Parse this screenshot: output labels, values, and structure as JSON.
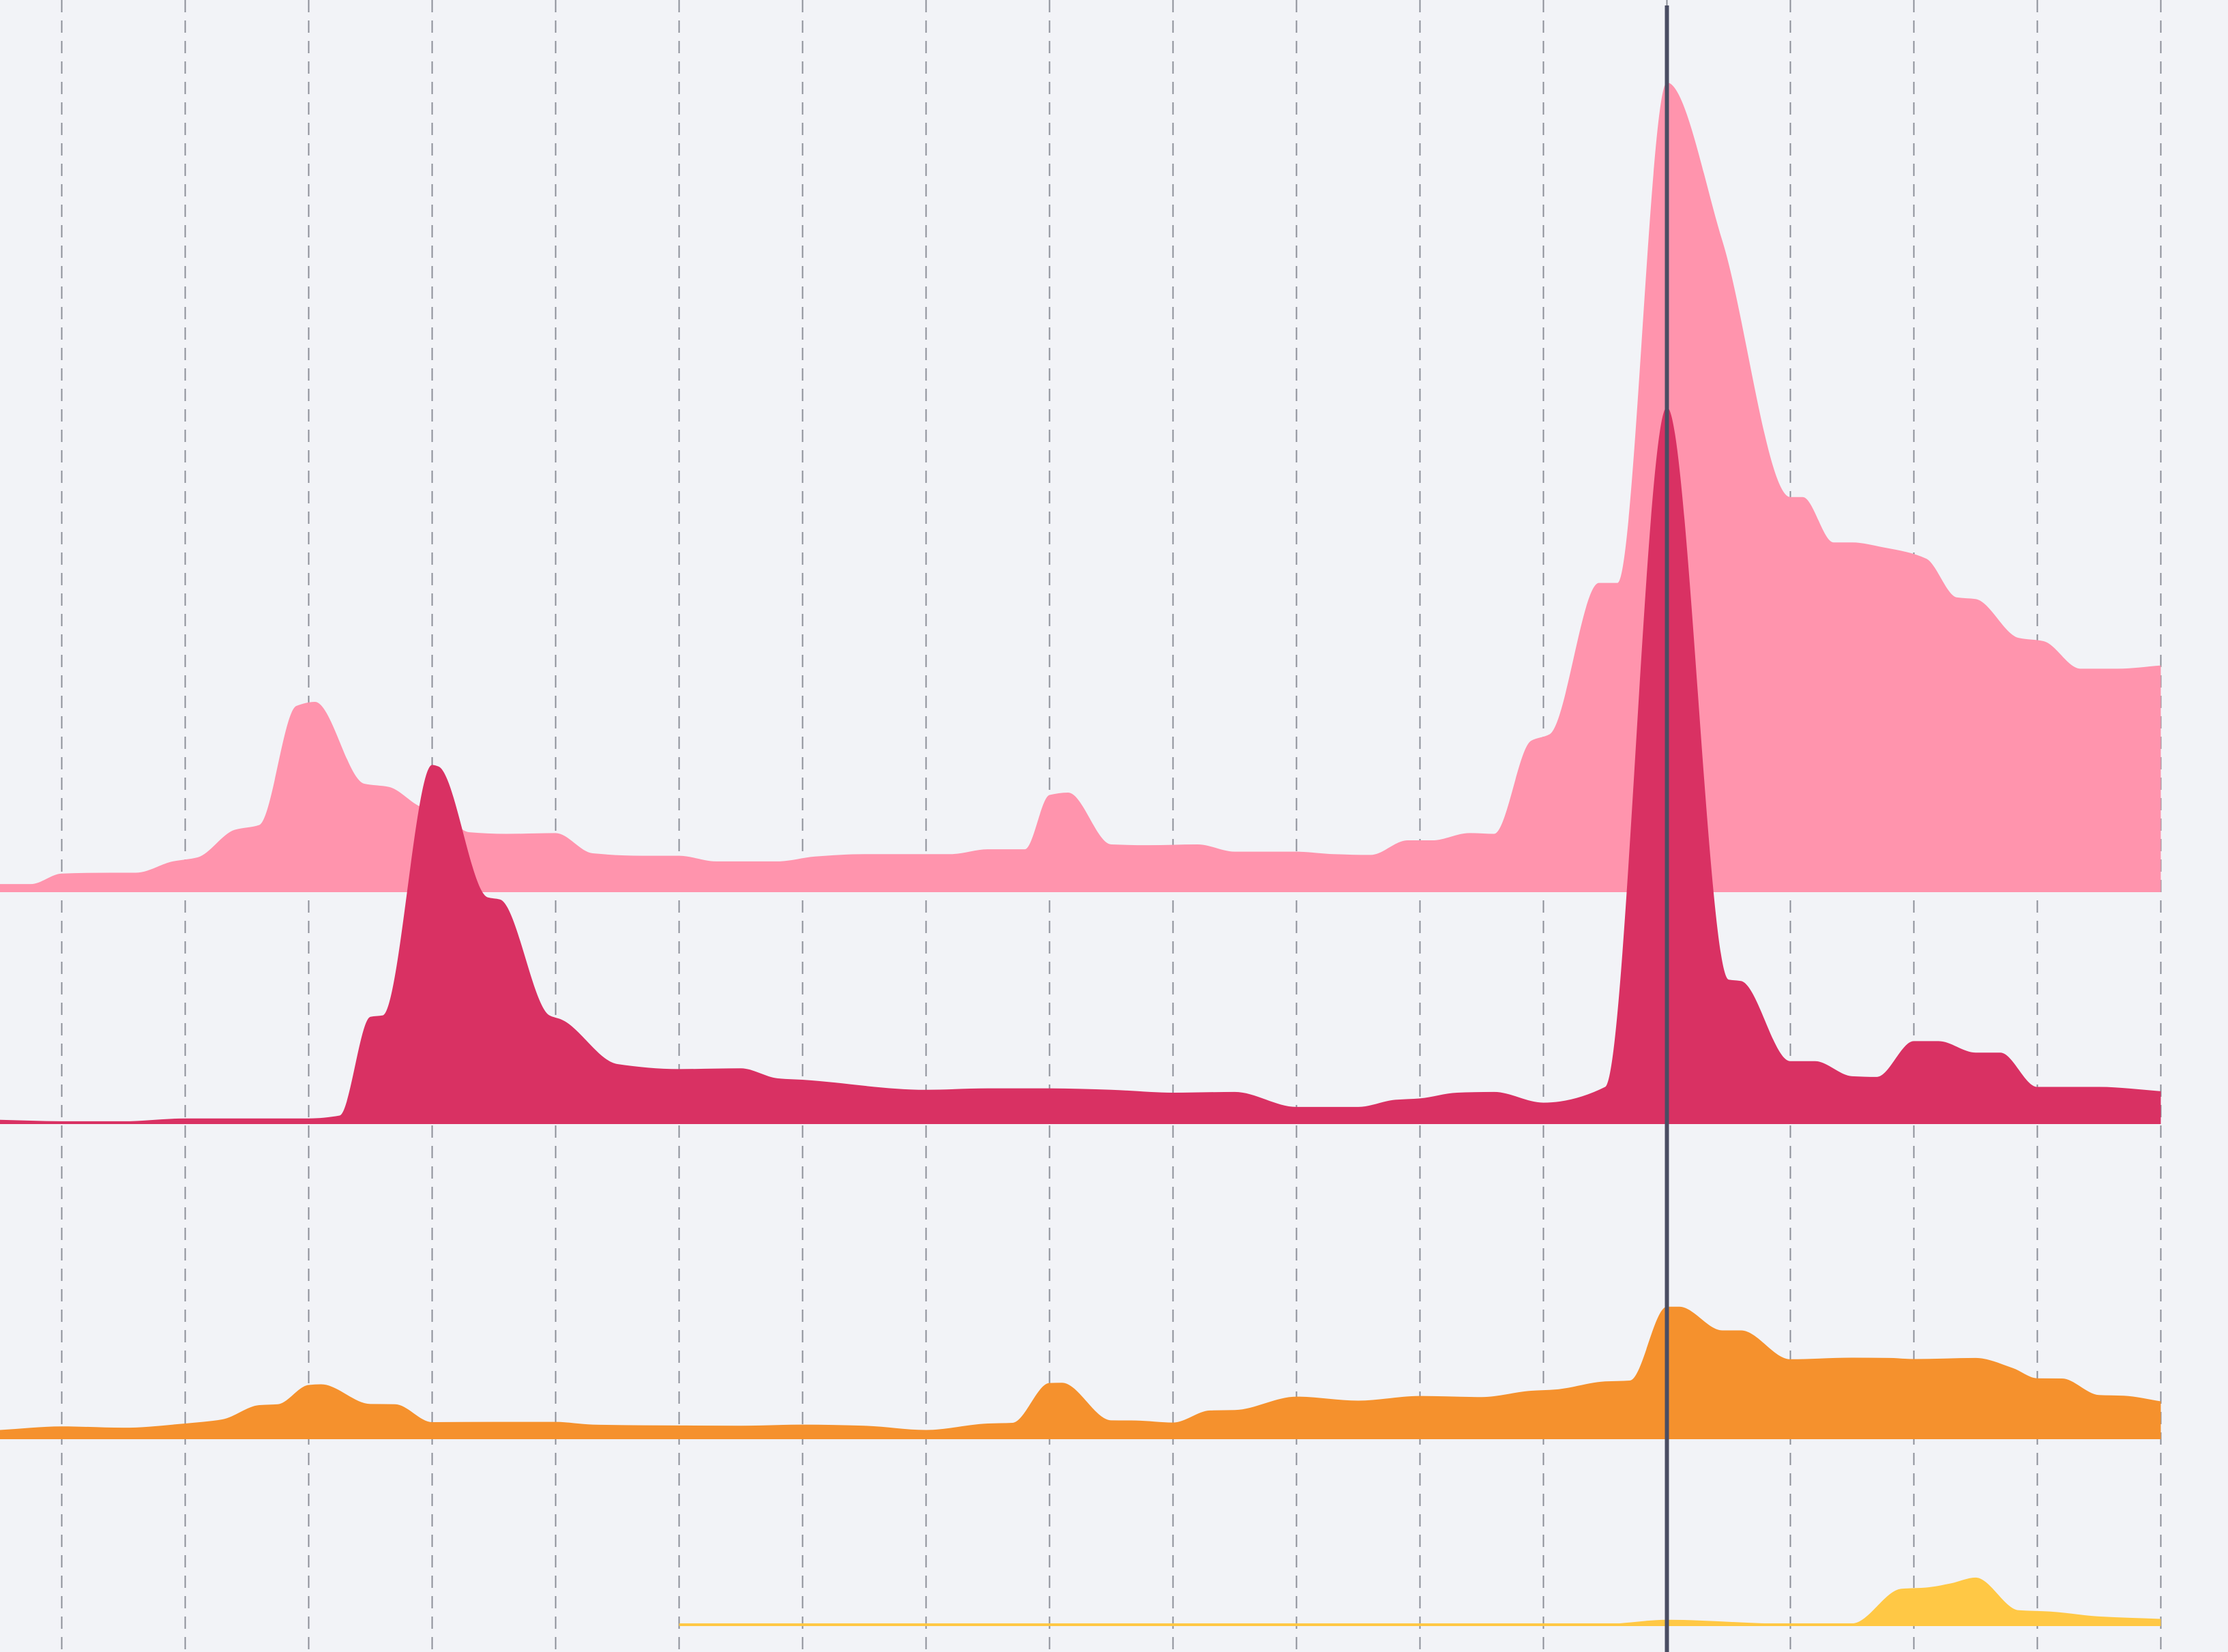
{
  "chart_data": {
    "type": "area",
    "layout": "stacked-ridgeline",
    "title": "",
    "xlabel": "",
    "ylabel": "",
    "grid": {
      "vertical": true,
      "horizontal": false,
      "style": "dashed"
    },
    "legend": "none",
    "highlight_x": 13.5,
    "x_ticks": [
      0.5,
      1.5,
      2.5,
      3.5,
      4.5,
      5.5,
      6.5,
      7.5,
      8.5,
      9.5,
      10.5,
      11.5,
      12.5,
      13.5,
      14.5,
      15.5,
      16.5,
      17.5
    ],
    "series": [
      {
        "color": "#ff94ad",
        "ylim": [
          0,
          100
        ],
        "points": [
          [
            0,
            1
          ],
          [
            0.25,
            1
          ],
          [
            0.5,
            2.3
          ],
          [
            0.9,
            2.4
          ],
          [
            1.1,
            2.4
          ],
          [
            1.4,
            3.8
          ],
          [
            1.6,
            4.3
          ],
          [
            1.9,
            7.7
          ],
          [
            2.1,
            8.3
          ],
          [
            2.4,
            23
          ],
          [
            2.55,
            23.5
          ],
          [
            2.95,
            13.4
          ],
          [
            3.15,
            13
          ],
          [
            3.4,
            10.6
          ],
          [
            3.6,
            9.5
          ],
          [
            3.8,
            7.4
          ],
          [
            4.1,
            7.2
          ],
          [
            4.5,
            7.3
          ],
          [
            4.8,
            4.8
          ],
          [
            5.2,
            4.5
          ],
          [
            5.5,
            4.5
          ],
          [
            5.8,
            3.8
          ],
          [
            6.3,
            3.8
          ],
          [
            6.6,
            4.4
          ],
          [
            7.0,
            4.7
          ],
          [
            7.7,
            4.7
          ],
          [
            8.0,
            5.3
          ],
          [
            8.3,
            5.3
          ],
          [
            8.5,
            12
          ],
          [
            8.65,
            12.3
          ],
          [
            9.0,
            5.9
          ],
          [
            9.3,
            5.8
          ],
          [
            9.7,
            5.9
          ],
          [
            10.0,
            5
          ],
          [
            10.5,
            5
          ],
          [
            10.8,
            4.7
          ],
          [
            11.1,
            4.6
          ],
          [
            11.4,
            6.4
          ],
          [
            11.6,
            6.4
          ],
          [
            11.9,
            7.3
          ],
          [
            12.1,
            7.2
          ],
          [
            12.4,
            18.7
          ],
          [
            12.55,
            19.5
          ],
          [
            12.95,
            38.2
          ],
          [
            13.1,
            38.2
          ],
          [
            13.5,
            100
          ],
          [
            13.95,
            80.4
          ],
          [
            14.5,
            48.8
          ],
          [
            14.6,
            48.8
          ],
          [
            14.85,
            43.2
          ],
          [
            15.0,
            43.2
          ],
          [
            15.25,
            42.6
          ],
          [
            15.6,
            41.2
          ],
          [
            15.85,
            36.4
          ],
          [
            16.0,
            36.2
          ],
          [
            16.35,
            31.4
          ],
          [
            16.55,
            31
          ],
          [
            16.85,
            27.6
          ],
          [
            17.15,
            27.6
          ],
          [
            17.5,
            28
          ]
        ]
      },
      {
        "color": "#d93163",
        "ylim": [
          0,
          100
        ],
        "points": [
          [
            0,
            0.4
          ],
          [
            0.5,
            0.2
          ],
          [
            1.0,
            0.2
          ],
          [
            1.5,
            0.6
          ],
          [
            2.5,
            0.6
          ],
          [
            2.75,
            1
          ],
          [
            3.0,
            14.8
          ],
          [
            3.1,
            15
          ],
          [
            3.5,
            50
          ],
          [
            3.55,
            49.8
          ],
          [
            3.95,
            31.5
          ],
          [
            4.05,
            31.2
          ],
          [
            4.45,
            15
          ],
          [
            4.55,
            14.4
          ],
          [
            5.0,
            8.2
          ],
          [
            5.5,
            7.5
          ],
          [
            6.0,
            7.6
          ],
          [
            6.3,
            6.2
          ],
          [
            6.5,
            6
          ],
          [
            7.5,
            4.6
          ],
          [
            8.0,
            4.8
          ],
          [
            8.5,
            4.8
          ],
          [
            9.0,
            4.6
          ],
          [
            9.5,
            4.2
          ],
          [
            10.0,
            4.3
          ],
          [
            10.5,
            2.2
          ],
          [
            11.0,
            2.2
          ],
          [
            11.3,
            3.2
          ],
          [
            11.5,
            3.4
          ],
          [
            11.8,
            4.2
          ],
          [
            12.1,
            4.3
          ],
          [
            12.5,
            2.8
          ],
          [
            13.0,
            5
          ],
          [
            13.5,
            100
          ],
          [
            14.0,
            20
          ],
          [
            14.1,
            19.8
          ],
          [
            14.5,
            8.6
          ],
          [
            14.7,
            8.6
          ],
          [
            15.0,
            6.5
          ],
          [
            15.2,
            6.4
          ],
          [
            15.5,
            11.4
          ],
          [
            15.7,
            11.4
          ],
          [
            16.0,
            9.8
          ],
          [
            16.2,
            9.8
          ],
          [
            16.5,
            5
          ],
          [
            17.0,
            5
          ],
          [
            17.5,
            4.4
          ]
        ]
      },
      {
        "color": "#f5912d",
        "ylim": [
          0,
          100
        ],
        "points": [
          [
            0,
            2.3
          ],
          [
            0.5,
            3.9
          ],
          [
            1.0,
            3.3
          ],
          [
            1.5,
            5.2
          ],
          [
            1.8,
            7
          ],
          [
            2.1,
            13.4
          ],
          [
            2.25,
            13.8
          ],
          [
            2.5,
            22.4
          ],
          [
            2.6,
            22.7
          ],
          [
            3.0,
            13.9
          ],
          [
            3.2,
            13.8
          ],
          [
            3.5,
            5.8
          ],
          [
            4.0,
            5.9
          ],
          [
            4.5,
            5.9
          ],
          [
            4.8,
            4.7
          ],
          [
            5.5,
            4.3
          ],
          [
            6.0,
            4.2
          ],
          [
            6.5,
            4.7
          ],
          [
            7.0,
            4.2
          ],
          [
            7.5,
            2.3
          ],
          [
            8.0,
            5.2
          ],
          [
            8.2,
            5.5
          ],
          [
            8.5,
            23.3
          ],
          [
            8.6,
            23.4
          ],
          [
            9.0,
            6.6
          ],
          [
            9.2,
            6.5
          ],
          [
            9.5,
            5.6
          ],
          [
            9.8,
            11
          ],
          [
            10.0,
            11.2
          ],
          [
            10.5,
            17.2
          ],
          [
            11.0,
            15.4
          ],
          [
            11.5,
            17.5
          ],
          [
            12.0,
            17
          ],
          [
            12.4,
            19.8
          ],
          [
            12.6,
            20.4
          ],
          [
            13.0,
            24
          ],
          [
            13.2,
            24.4
          ],
          [
            13.5,
            57.4
          ],
          [
            13.6,
            57.4
          ],
          [
            13.95,
            46.8
          ],
          [
            14.1,
            46.8
          ],
          [
            14.5,
            33.9
          ],
          [
            15.0,
            34.6
          ],
          [
            15.3,
            34.5
          ],
          [
            15.5,
            34
          ],
          [
            16.0,
            34.5
          ],
          [
            16.3,
            30
          ],
          [
            16.5,
            25.4
          ],
          [
            16.7,
            25.3
          ],
          [
            17.0,
            17.9
          ],
          [
            17.2,
            17.6
          ],
          [
            17.5,
            15.1
          ]
        ]
      },
      {
        "color": "#ffc845",
        "ylim": [
          0,
          100
        ],
        "points": [
          [
            5.5,
            0
          ],
          [
            13.0,
            0.2
          ],
          [
            13.5,
            1.2
          ],
          [
            14.5,
            0.2
          ],
          [
            15.0,
            0.3
          ],
          [
            15.4,
            8.7
          ],
          [
            15.6,
            9
          ],
          [
            15.8,
            10
          ],
          [
            16.0,
            11.4
          ],
          [
            16.35,
            3.5
          ],
          [
            16.6,
            3.2
          ],
          [
            17.0,
            2
          ],
          [
            17.5,
            1.4
          ]
        ]
      }
    ]
  }
}
